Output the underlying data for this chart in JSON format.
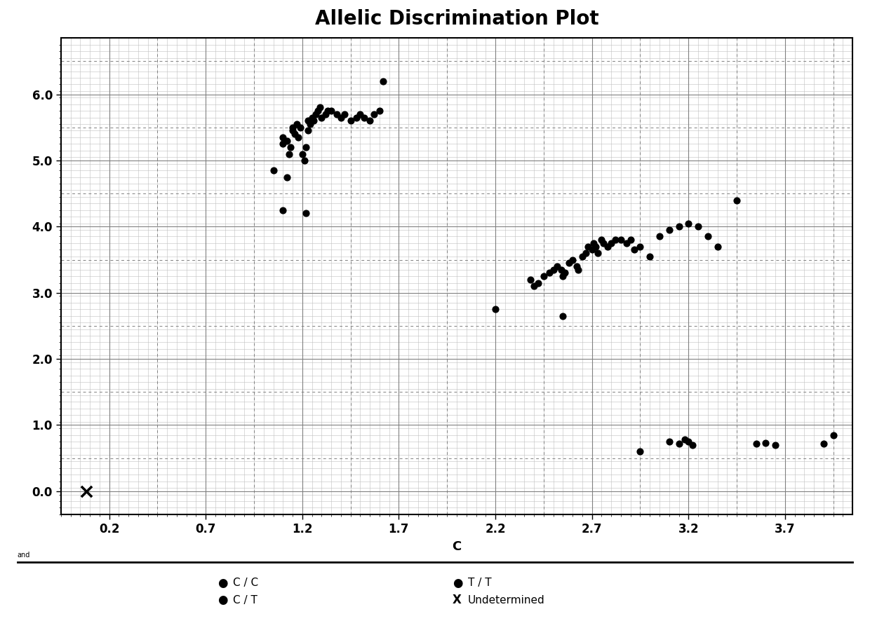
{
  "title": "Allelic Discrimination Plot",
  "xlabel": "C",
  "xlim": [
    -0.05,
    4.05
  ],
  "ylim": [
    -0.35,
    6.85
  ],
  "xticks": [
    0.2,
    0.7,
    1.2,
    1.7,
    2.2,
    2.7,
    3.2,
    3.7
  ],
  "yticks": [
    0.0,
    1.0,
    2.0,
    3.0,
    4.0,
    5.0,
    6.0
  ],
  "background_color": "#ffffff",
  "cc_points": [
    [
      1.05,
      4.85
    ],
    [
      1.1,
      5.25
    ],
    [
      1.1,
      5.35
    ],
    [
      1.12,
      5.3
    ],
    [
      1.13,
      5.1
    ],
    [
      1.14,
      5.2
    ],
    [
      1.15,
      5.45
    ],
    [
      1.15,
      5.5
    ],
    [
      1.16,
      5.4
    ],
    [
      1.17,
      5.55
    ],
    [
      1.18,
      5.35
    ],
    [
      1.19,
      5.5
    ],
    [
      1.2,
      5.1
    ],
    [
      1.21,
      5.0
    ],
    [
      1.22,
      5.2
    ],
    [
      1.23,
      5.45
    ],
    [
      1.23,
      5.6
    ],
    [
      1.24,
      5.55
    ],
    [
      1.25,
      5.65
    ],
    [
      1.26,
      5.6
    ],
    [
      1.27,
      5.7
    ],
    [
      1.28,
      5.75
    ],
    [
      1.29,
      5.8
    ],
    [
      1.3,
      5.65
    ],
    [
      1.32,
      5.7
    ],
    [
      1.33,
      5.75
    ],
    [
      1.35,
      5.75
    ],
    [
      1.38,
      5.7
    ],
    [
      1.4,
      5.65
    ],
    [
      1.42,
      5.7
    ],
    [
      1.45,
      5.6
    ],
    [
      1.48,
      5.65
    ],
    [
      1.5,
      5.7
    ],
    [
      1.52,
      5.65
    ],
    [
      1.55,
      5.6
    ],
    [
      1.57,
      5.7
    ],
    [
      1.6,
      5.75
    ],
    [
      1.62,
      6.2
    ],
    [
      1.1,
      4.25
    ],
    [
      1.22,
      4.2
    ],
    [
      1.12,
      4.75
    ]
  ],
  "ct_points": [
    [
      2.2,
      2.75
    ],
    [
      2.55,
      2.65
    ],
    [
      2.38,
      3.2
    ],
    [
      2.4,
      3.1
    ],
    [
      2.42,
      3.15
    ],
    [
      2.45,
      3.25
    ],
    [
      2.48,
      3.3
    ],
    [
      2.5,
      3.35
    ],
    [
      2.52,
      3.4
    ],
    [
      2.54,
      3.35
    ],
    [
      2.55,
      3.25
    ],
    [
      2.56,
      3.3
    ],
    [
      2.58,
      3.45
    ],
    [
      2.6,
      3.5
    ],
    [
      2.62,
      3.4
    ],
    [
      2.63,
      3.35
    ],
    [
      2.65,
      3.55
    ],
    [
      2.67,
      3.6
    ],
    [
      2.68,
      3.7
    ],
    [
      2.7,
      3.65
    ],
    [
      2.71,
      3.75
    ],
    [
      2.72,
      3.7
    ],
    [
      2.73,
      3.6
    ],
    [
      2.75,
      3.8
    ],
    [
      2.76,
      3.75
    ],
    [
      2.78,
      3.7
    ],
    [
      2.8,
      3.75
    ],
    [
      2.82,
      3.8
    ],
    [
      2.85,
      3.8
    ],
    [
      2.88,
      3.75
    ],
    [
      2.9,
      3.8
    ],
    [
      2.92,
      3.65
    ],
    [
      2.95,
      3.7
    ],
    [
      3.0,
      3.55
    ],
    [
      3.05,
      3.85
    ],
    [
      3.1,
      3.95
    ],
    [
      3.15,
      4.0
    ],
    [
      3.2,
      4.05
    ],
    [
      3.25,
      4.0
    ],
    [
      3.3,
      3.85
    ],
    [
      3.35,
      3.7
    ],
    [
      3.45,
      4.4
    ]
  ],
  "tt_points": [
    [
      2.95,
      0.6
    ],
    [
      3.1,
      0.75
    ],
    [
      3.15,
      0.72
    ],
    [
      3.18,
      0.78
    ],
    [
      3.2,
      0.75
    ],
    [
      3.22,
      0.7
    ],
    [
      3.55,
      0.72
    ],
    [
      3.6,
      0.73
    ],
    [
      3.65,
      0.7
    ],
    [
      3.9,
      0.72
    ],
    [
      3.95,
      0.85
    ]
  ],
  "undetermined_points": [
    [
      0.08,
      0.0
    ]
  ],
  "point_size": 40,
  "point_color": "#000000",
  "title_fontsize": 20,
  "label_fontsize": 13,
  "tick_fontsize": 12,
  "legend_fontsize": 11,
  "minor_x_step": 0.05,
  "minor_y_step": 0.1,
  "dash_x_positions": [
    0.45,
    0.95,
    1.45,
    1.95,
    2.45,
    2.95,
    3.45,
    3.95
  ],
  "dash_y_positions": [
    0.5,
    1.5,
    2.5,
    3.5,
    4.5,
    5.5,
    6.5
  ]
}
